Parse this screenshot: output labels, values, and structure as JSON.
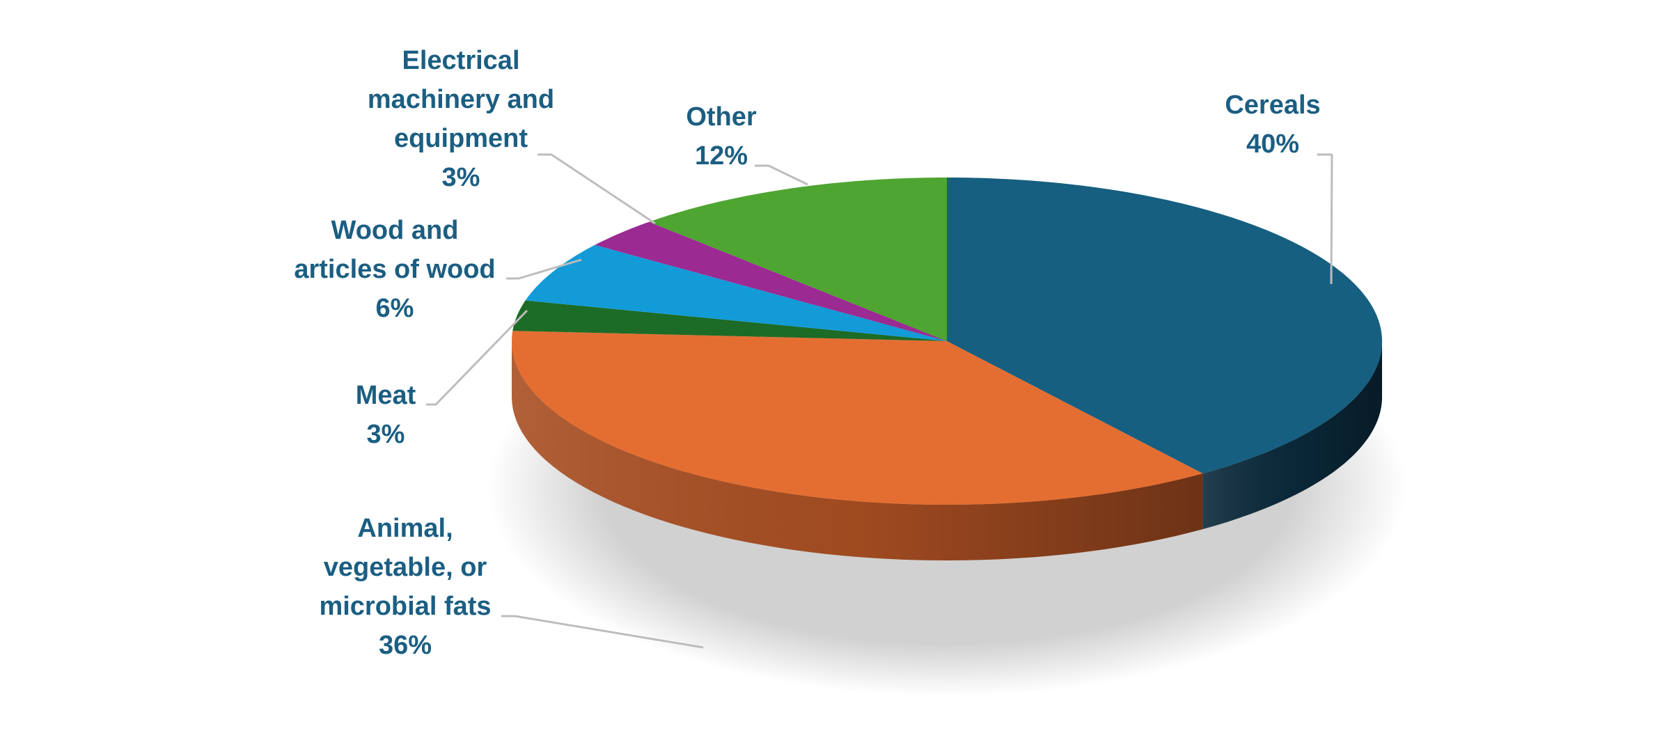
{
  "chart_data": {
    "type": "pie",
    "style": "3d",
    "legend": "none",
    "slices": [
      {
        "label": "Cereals",
        "value": 40,
        "value_label": "40%",
        "color": "#165f80",
        "side_color": "#0b2a3b"
      },
      {
        "label": "Animal, vegetable, or microbial fats",
        "value": 36,
        "value_label": "36%",
        "color": "#e46e31",
        "side_color": "#a84e22"
      },
      {
        "label": "Meat",
        "value": 3,
        "value_label": "3%",
        "color": "#1c6b26",
        "side_color": "#124518"
      },
      {
        "label": "Wood and articles of wood",
        "value": 6,
        "value_label": "6%",
        "color": "#139bd8",
        "side_color": "#0c6a95"
      },
      {
        "label": "Electrical machinery and equipment",
        "value": 3,
        "value_label": "3%",
        "color": "#9b2a92",
        "side_color": "#6a1c64"
      },
      {
        "label": "Other",
        "value": 12,
        "value_label": "12%",
        "color": "#4ea531",
        "side_color": "#336e20"
      }
    ]
  }
}
